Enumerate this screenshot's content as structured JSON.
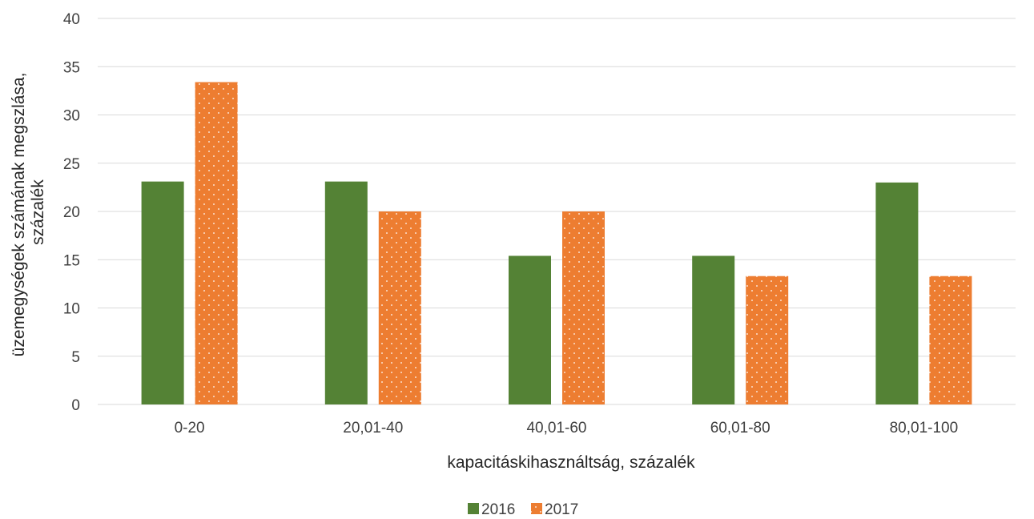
{
  "chart_data": {
    "type": "bar",
    "categories": [
      "0-20",
      "20,01-40",
      "40,01-60",
      "60,01-80",
      "80,01-100"
    ],
    "series": [
      {
        "name": "2016",
        "values": [
          23.1,
          23.1,
          15.4,
          15.4,
          23.0
        ],
        "color": "#548235",
        "pattern": "solid"
      },
      {
        "name": "2017",
        "values": [
          33.4,
          20.0,
          20.0,
          13.3,
          13.3
        ],
        "color": "#ed7d31",
        "pattern": "dotted"
      }
    ],
    "xlabel": "kapacitáskihasználtság, százalék",
    "ylabel_lines": [
      "üzemegységek számának megszlása,",
      "százalék"
    ],
    "ylim": [
      0,
      40
    ],
    "yticks": [
      0,
      5,
      10,
      15,
      20,
      25,
      30,
      35,
      40
    ],
    "grid": true,
    "legend_position": "bottom-center"
  }
}
